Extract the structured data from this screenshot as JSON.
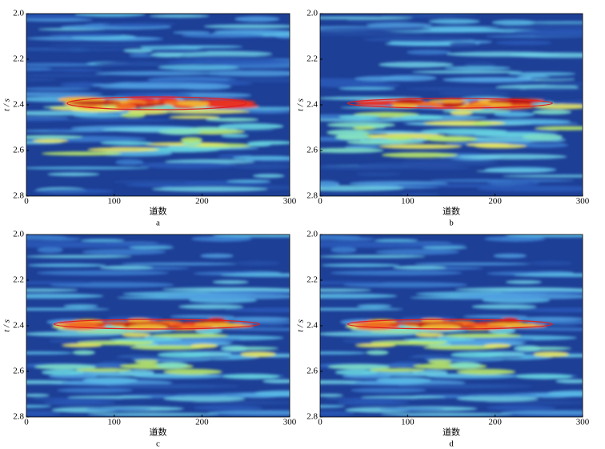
{
  "chart_data": [
    {
      "type": "heatmap",
      "caption": "a",
      "xlabel": "道数",
      "ylabel": "t / s",
      "xlim": [
        0,
        300
      ],
      "ylim": [
        2.0,
        2.8
      ],
      "yinvert": true,
      "xticks": [
        0,
        100,
        200,
        300
      ],
      "yticks": [
        {
          "value": 2,
          "label": "2.0"
        },
        2.2,
        2.4,
        2.6,
        2.8
      ]
    },
    {
      "type": "heatmap",
      "caption": "b",
      "xlabel": "道数",
      "ylabel": "t / s",
      "xlim": [
        0,
        300
      ],
      "ylim": [
        2.0,
        2.8
      ],
      "yinvert": true,
      "xticks": [
        0,
        100,
        200,
        300
      ],
      "yticks": [
        {
          "value": 2,
          "label": "2.0"
        },
        2.2,
        2.4,
        2.6,
        2.8
      ]
    },
    {
      "type": "heatmap",
      "caption": "c",
      "xlabel": "道数",
      "ylabel": "t / s",
      "xlim": [
        0,
        300
      ],
      "ylim": [
        2.0,
        2.8
      ],
      "yinvert": true,
      "xticks": [
        0,
        100,
        200,
        300
      ],
      "yticks": [
        {
          "value": 2,
          "label": "2.0"
        },
        2.2,
        2.4,
        2.6,
        2.8
      ]
    },
    {
      "type": "heatmap",
      "caption": "d",
      "xlabel": "道数",
      "ylabel": "t / s",
      "xlim": [
        0,
        300
      ],
      "ylim": [
        2.0,
        2.8
      ],
      "yinvert": true,
      "xticks": [
        0,
        100,
        200,
        300
      ],
      "yticks": [
        {
          "value": 2,
          "label": "2.0"
        },
        2.2,
        2.4,
        2.6,
        2.8
      ]
    }
  ]
}
